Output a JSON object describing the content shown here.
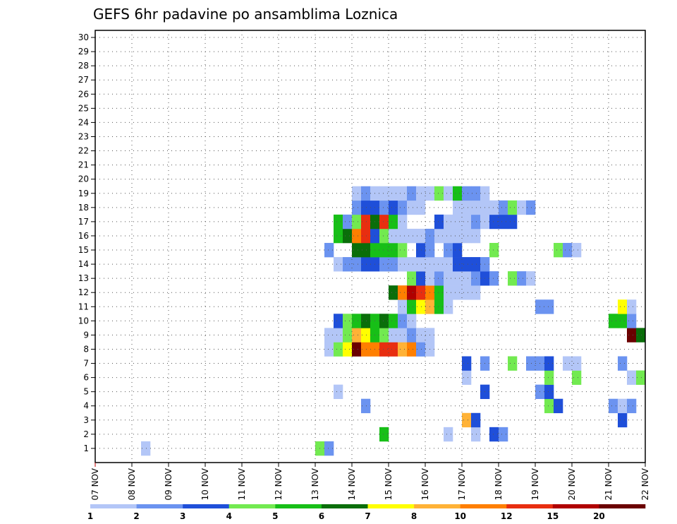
{
  "chart_data": {
    "type": "heatmap",
    "title": "GEFS 6hr padavine po ansamblima Loznica",
    "x_labels": [
      "07 NOV",
      "08 NOV",
      "09 NOV",
      "10 NOV",
      "11 NOV",
      "12 NOV",
      "13 NOV",
      "14 NOV",
      "15 NOV",
      "16 NOV",
      "17 NOV",
      "18 NOV",
      "19 NOV",
      "20 NOV",
      "21 NOV",
      "22 NOV"
    ],
    "y_labels": [
      "1",
      "2",
      "3",
      "4",
      "5",
      "6",
      "7",
      "8",
      "9",
      "10",
      "11",
      "12",
      "13",
      "14",
      "15",
      "16",
      "17",
      "18",
      "19",
      "20",
      "21",
      "22",
      "23",
      "24",
      "25",
      "26",
      "27",
      "28",
      "29",
      "30"
    ],
    "steps_per_day": 4,
    "total_steps": 60,
    "legend": {
      "labels": [
        "1",
        "2",
        "3",
        "4",
        "5",
        "6",
        "7",
        "8",
        "10",
        "12",
        "15",
        "20"
      ],
      "colors": [
        "#b3c6f7",
        "#6b93f0",
        "#1f4fd9",
        "#72ea50",
        "#17bf17",
        "#0a6e0a",
        "#ffff00",
        "#ffb236",
        "#ff7f00",
        "#e82e10",
        "#b00000",
        "#6b0000"
      ]
    },
    "series_cells": [
      [
        0,
        5,
        1
      ],
      [
        0,
        24,
        4
      ],
      [
        0,
        25,
        2
      ],
      [
        1,
        31,
        5
      ],
      [
        1,
        38,
        1
      ],
      [
        1,
        41,
        1
      ],
      [
        1,
        43,
        3
      ],
      [
        1,
        44,
        2
      ],
      [
        2,
        40,
        8
      ],
      [
        2,
        41,
        3
      ],
      [
        2,
        57,
        3
      ],
      [
        3,
        29,
        2
      ],
      [
        3,
        49,
        4
      ],
      [
        3,
        50,
        3
      ],
      [
        3,
        56,
        2
      ],
      [
        3,
        57,
        1
      ],
      [
        3,
        58,
        2
      ],
      [
        4,
        26,
        1
      ],
      [
        4,
        42,
        3
      ],
      [
        4,
        48,
        2
      ],
      [
        4,
        49,
        3
      ],
      [
        5,
        40,
        1
      ],
      [
        5,
        49,
        4
      ],
      [
        5,
        52,
        4
      ],
      [
        5,
        58,
        1
      ],
      [
        5,
        59,
        4
      ],
      [
        6,
        40,
        3
      ],
      [
        6,
        42,
        2
      ],
      [
        6,
        45,
        4
      ],
      [
        6,
        47,
        2
      ],
      [
        6,
        48,
        2
      ],
      [
        6,
        49,
        3
      ],
      [
        6,
        51,
        1
      ],
      [
        6,
        52,
        1
      ],
      [
        6,
        57,
        2
      ],
      [
        7,
        25,
        1
      ],
      [
        7,
        26,
        4
      ],
      [
        7,
        27,
        7
      ],
      [
        7,
        28,
        12
      ],
      [
        7,
        29,
        9
      ],
      [
        7,
        30,
        9
      ],
      [
        7,
        31,
        10
      ],
      [
        7,
        32,
        10
      ],
      [
        7,
        33,
        8
      ],
      [
        7,
        34,
        9
      ],
      [
        7,
        35,
        2
      ],
      [
        7,
        36,
        1
      ],
      [
        8,
        25,
        1
      ],
      [
        8,
        26,
        1
      ],
      [
        8,
        27,
        4
      ],
      [
        8,
        28,
        8
      ],
      [
        8,
        29,
        7
      ],
      [
        8,
        30,
        5
      ],
      [
        8,
        31,
        4
      ],
      [
        8,
        32,
        1
      ],
      [
        8,
        33,
        1
      ],
      [
        8,
        34,
        2
      ],
      [
        8,
        35,
        1
      ],
      [
        8,
        36,
        1
      ],
      [
        8,
        58,
        12
      ],
      [
        8,
        59,
        6
      ],
      [
        9,
        26,
        3
      ],
      [
        9,
        27,
        4
      ],
      [
        9,
        28,
        5
      ],
      [
        9,
        29,
        6
      ],
      [
        9,
        30,
        5
      ],
      [
        9,
        31,
        6
      ],
      [
        9,
        32,
        5
      ],
      [
        9,
        33,
        2
      ],
      [
        9,
        34,
        1
      ],
      [
        9,
        56,
        5
      ],
      [
        9,
        57,
        5
      ],
      [
        9,
        58,
        2
      ],
      [
        10,
        33,
        1
      ],
      [
        10,
        34,
        5
      ],
      [
        10,
        35,
        7
      ],
      [
        10,
        36,
        8
      ],
      [
        10,
        37,
        5
      ],
      [
        10,
        38,
        1
      ],
      [
        10,
        48,
        2
      ],
      [
        10,
        49,
        2
      ],
      [
        10,
        57,
        7
      ],
      [
        10,
        58,
        1
      ],
      [
        11,
        32,
        6
      ],
      [
        11,
        33,
        9
      ],
      [
        11,
        34,
        11
      ],
      [
        11,
        35,
        10
      ],
      [
        11,
        36,
        9
      ],
      [
        11,
        37,
        5
      ],
      [
        11,
        38,
        1
      ],
      [
        11,
        39,
        1
      ],
      [
        11,
        40,
        1
      ],
      [
        11,
        41,
        1
      ],
      [
        12,
        34,
        4
      ],
      [
        12,
        35,
        3
      ],
      [
        12,
        36,
        1
      ],
      [
        12,
        37,
        2
      ],
      [
        12,
        38,
        1
      ],
      [
        12,
        39,
        1
      ],
      [
        12,
        40,
        1
      ],
      [
        12,
        41,
        2
      ],
      [
        12,
        42,
        3
      ],
      [
        12,
        43,
        2
      ],
      [
        12,
        45,
        4
      ],
      [
        12,
        46,
        2
      ],
      [
        12,
        47,
        1
      ],
      [
        13,
        26,
        1
      ],
      [
        13,
        27,
        2
      ],
      [
        13,
        28,
        2
      ],
      [
        13,
        29,
        3
      ],
      [
        13,
        30,
        3
      ],
      [
        13,
        31,
        2
      ],
      [
        13,
        32,
        2
      ],
      [
        13,
        33,
        1
      ],
      [
        13,
        34,
        1
      ],
      [
        13,
        35,
        1
      ],
      [
        13,
        36,
        1
      ],
      [
        13,
        37,
        1
      ],
      [
        13,
        38,
        1
      ],
      [
        13,
        39,
        3
      ],
      [
        13,
        40,
        3
      ],
      [
        13,
        41,
        3
      ],
      [
        13,
        42,
        2
      ],
      [
        14,
        25,
        2
      ],
      [
        14,
        28,
        6
      ],
      [
        14,
        29,
        6
      ],
      [
        14,
        30,
        5
      ],
      [
        14,
        31,
        5
      ],
      [
        14,
        32,
        5
      ],
      [
        14,
        33,
        4
      ],
      [
        14,
        35,
        3
      ],
      [
        14,
        36,
        2
      ],
      [
        14,
        38,
        2
      ],
      [
        14,
        39,
        3
      ],
      [
        14,
        43,
        4
      ],
      [
        14,
        50,
        4
      ],
      [
        14,
        51,
        2
      ],
      [
        14,
        52,
        1
      ],
      [
        15,
        26,
        5
      ],
      [
        15,
        27,
        6
      ],
      [
        15,
        28,
        9
      ],
      [
        15,
        29,
        10
      ],
      [
        15,
        30,
        3
      ],
      [
        15,
        31,
        4
      ],
      [
        15,
        32,
        1
      ],
      [
        15,
        33,
        1
      ],
      [
        15,
        34,
        1
      ],
      [
        15,
        35,
        1
      ],
      [
        15,
        36,
        2
      ],
      [
        15,
        37,
        1
      ],
      [
        15,
        38,
        1
      ],
      [
        15,
        39,
        1
      ],
      [
        15,
        40,
        1
      ],
      [
        15,
        41,
        1
      ],
      [
        16,
        26,
        5
      ],
      [
        16,
        27,
        2
      ],
      [
        16,
        28,
        4
      ],
      [
        16,
        29,
        10
      ],
      [
        16,
        30,
        6
      ],
      [
        16,
        31,
        10
      ],
      [
        16,
        32,
        5
      ],
      [
        16,
        33,
        1
      ],
      [
        16,
        37,
        3
      ],
      [
        16,
        38,
        1
      ],
      [
        16,
        39,
        1
      ],
      [
        16,
        40,
        1
      ],
      [
        16,
        41,
        2
      ],
      [
        16,
        42,
        1
      ],
      [
        16,
        43,
        3
      ],
      [
        16,
        44,
        3
      ],
      [
        16,
        45,
        3
      ],
      [
        17,
        28,
        2
      ],
      [
        17,
        29,
        3
      ],
      [
        17,
        30,
        3
      ],
      [
        17,
        31,
        2
      ],
      [
        17,
        32,
        3
      ],
      [
        17,
        33,
        2
      ],
      [
        17,
        34,
        1
      ],
      [
        17,
        35,
        1
      ],
      [
        17,
        39,
        1
      ],
      [
        17,
        40,
        1
      ],
      [
        17,
        41,
        1
      ],
      [
        17,
        42,
        1
      ],
      [
        17,
        43,
        1
      ],
      [
        17,
        44,
        2
      ],
      [
        17,
        45,
        4
      ],
      [
        17,
        46,
        1
      ],
      [
        17,
        47,
        2
      ],
      [
        18,
        28,
        1
      ],
      [
        18,
        29,
        2
      ],
      [
        18,
        30,
        1
      ],
      [
        18,
        31,
        1
      ],
      [
        18,
        32,
        1
      ],
      [
        18,
        33,
        1
      ],
      [
        18,
        34,
        2
      ],
      [
        18,
        35,
        1
      ],
      [
        18,
        36,
        1
      ],
      [
        18,
        37,
        4
      ],
      [
        18,
        38,
        1
      ],
      [
        18,
        39,
        5
      ],
      [
        18,
        40,
        2
      ],
      [
        18,
        41,
        2
      ],
      [
        18,
        42,
        1
      ]
    ]
  }
}
